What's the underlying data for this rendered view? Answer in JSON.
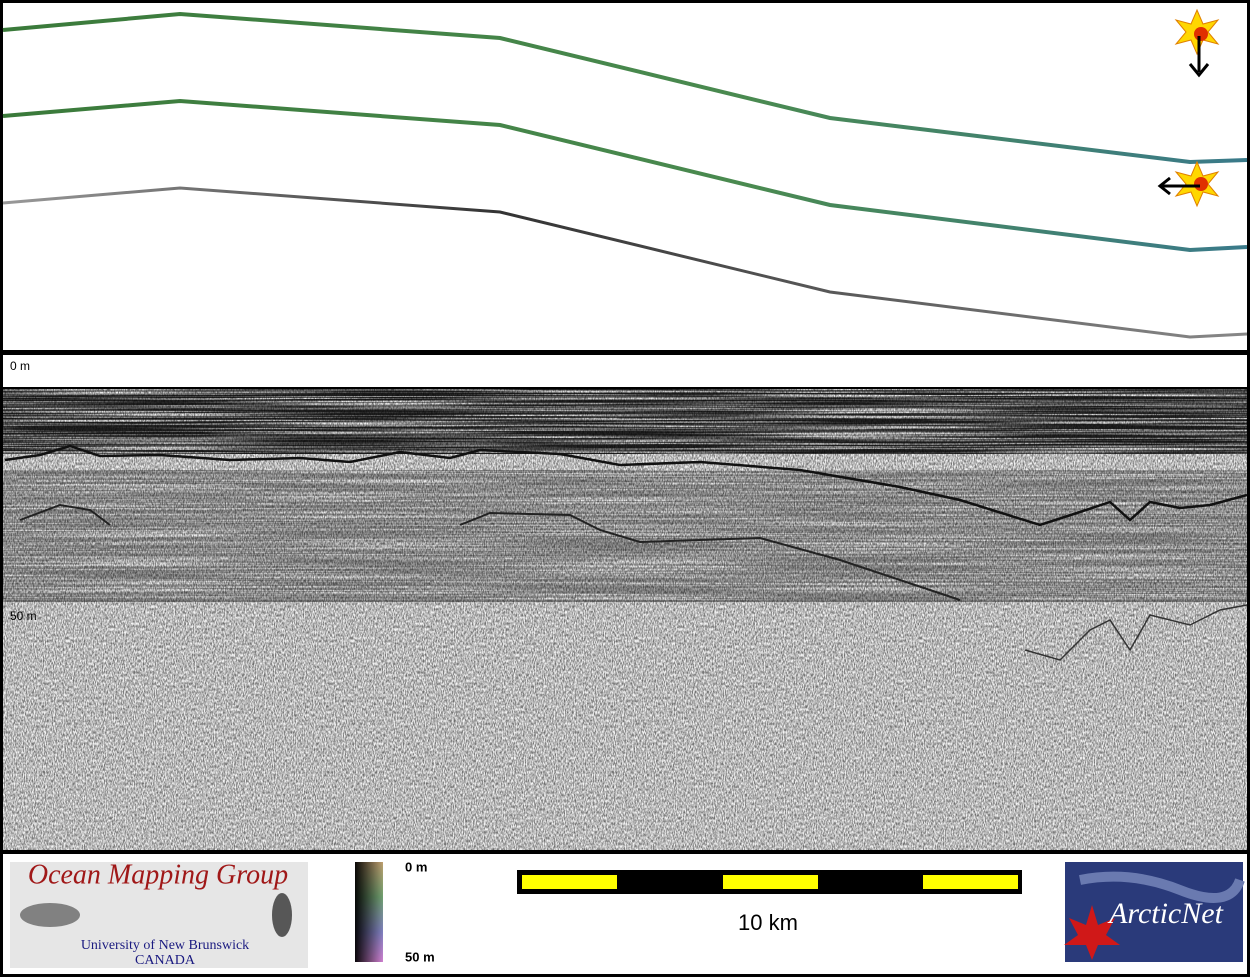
{
  "profile": {
    "depth_top": "0 m",
    "depth_mid": "50 m"
  },
  "footer": {
    "logo_title": "Ocean Mapping Group",
    "logo_subtitle": "University of New Brunswick",
    "logo_country": "CANADA",
    "colorbar_top": "0 m",
    "colorbar_bottom": "50 m",
    "scale_label": "10 km",
    "partner": "ArcticNet"
  }
}
